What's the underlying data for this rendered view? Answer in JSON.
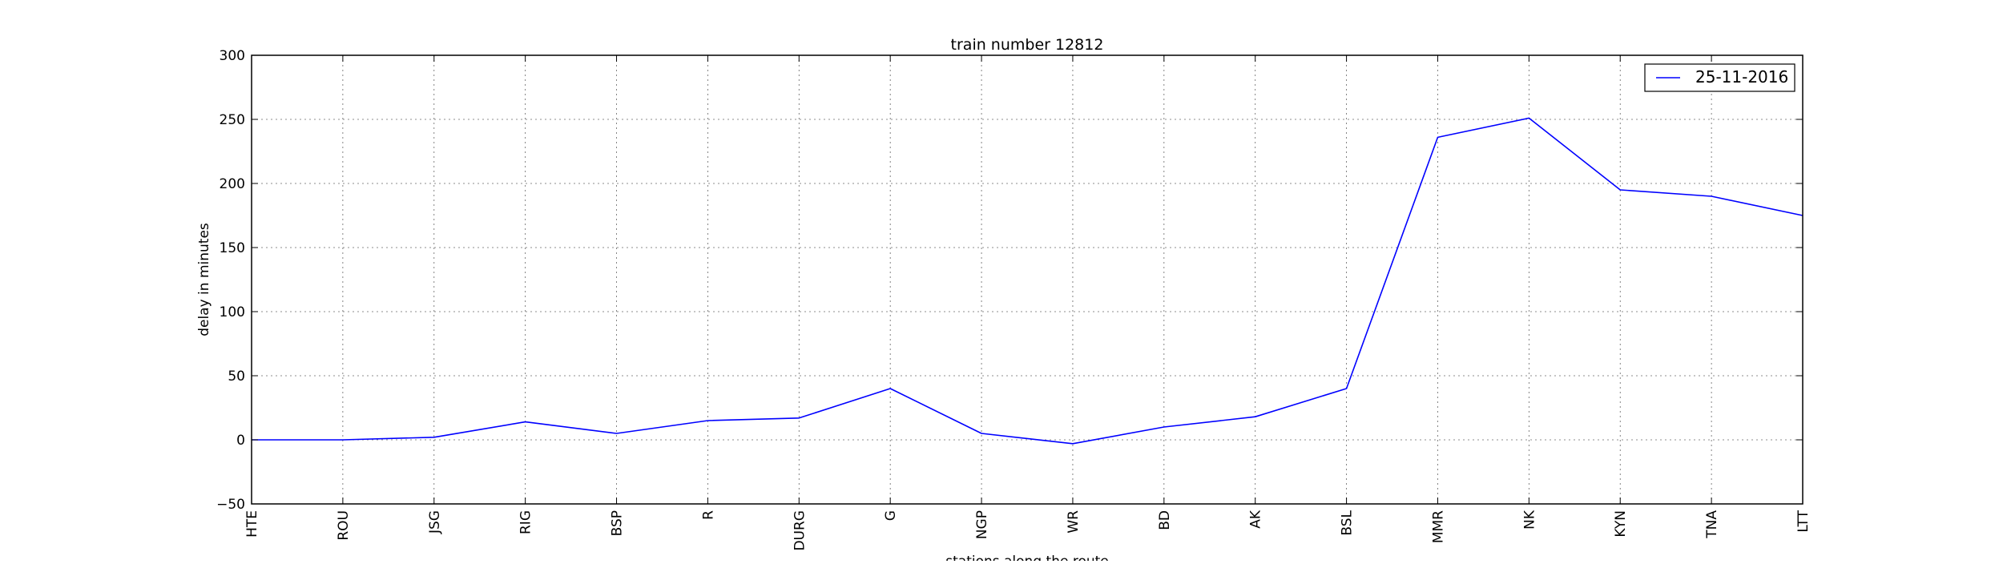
{
  "chart_data": {
    "type": "line",
    "title": "train number 12812",
    "xlabel": "stations along the route",
    "ylabel": "delay in minutes",
    "categories": [
      "HTE",
      "ROU",
      "JSG",
      "RIG",
      "BSP",
      "R",
      "DURG",
      "G",
      "NGP",
      "WR",
      "BD",
      "AK",
      "BSL",
      "MMR",
      "NK",
      "KYN",
      "TNA",
      "LTT"
    ],
    "series": [
      {
        "name": "25-11-2016",
        "color": "#0000ff",
        "values": [
          0,
          0,
          2,
          14,
          5,
          15,
          17,
          40,
          5,
          -3,
          10,
          18,
          40,
          236,
          251,
          195,
          190,
          175
        ]
      }
    ],
    "ylim": [
      -50,
      300
    ],
    "yticks": [
      -50,
      0,
      50,
      100,
      150,
      200,
      250,
      300
    ],
    "grid": true,
    "legend_position": "top-right"
  }
}
